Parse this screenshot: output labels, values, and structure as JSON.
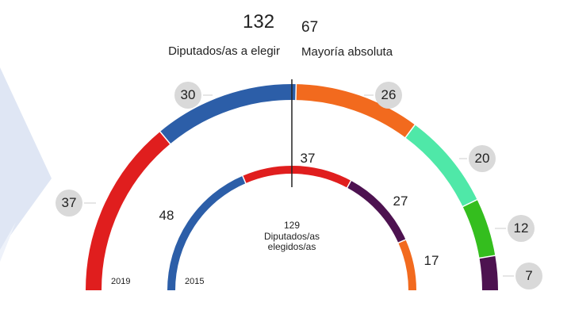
{
  "header": {
    "seats_total": "132",
    "seats_total_label": "Diputados/as a elegir",
    "majority": "67",
    "majority_label": "Mayoría absoluta"
  },
  "center": {
    "elected_count": "129",
    "elected_label_1": "Diputados/as",
    "elected_label_2": "elegidos/as"
  },
  "chart_data": {
    "type": "pie",
    "subtype": "parliament-semicircle",
    "title": "132 Diputados/as a elegir — 67 Mayoría absoluta",
    "rings": [
      {
        "name": "2019",
        "total": 132,
        "values": [
          37,
          30,
          26,
          20,
          12,
          7
        ],
        "labels": [
          "37",
          "30",
          "26",
          "20",
          "12",
          "7"
        ],
        "colors": [
          "#e01e1e",
          "#2c5ea8",
          "#f26a1e",
          "#4fe8a8",
          "#34be1e",
          "#4d1250"
        ]
      },
      {
        "name": "2015",
        "total": 129,
        "values": [
          48,
          37,
          27,
          17
        ],
        "labels": [
          "48",
          "37",
          "27",
          "17"
        ],
        "colors": [
          "#2c5ea8",
          "#e01e1e",
          "#4d1250",
          "#f26a1e"
        ]
      }
    ],
    "majority_line": 67
  }
}
